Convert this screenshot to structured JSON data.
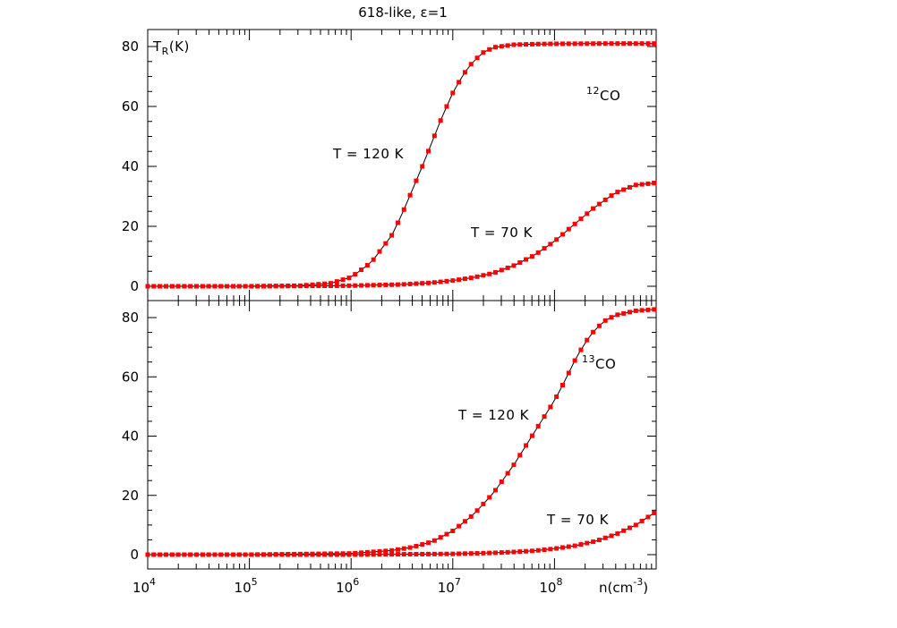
{
  "chart_data": {
    "type": "line",
    "title": "618-like, ε=1",
    "xscale": "log",
    "xlim": [
      10000,
      1000000000
    ],
    "xticks": [
      "10^4",
      "10^5",
      "10^6",
      "10^7",
      "10^8"
    ],
    "xlabel": "n(cm^-3)",
    "ylabel": "T_R(K)",
    "panels": [
      {
        "species": "12CO",
        "label_main": "CO",
        "label_sup": "12",
        "ylim": [
          -3,
          83
        ],
        "yticks": [
          0,
          20,
          40,
          60,
          80
        ],
        "series": [
          {
            "name": "T = 120 K",
            "logx": [
              4.0,
              5.0,
              5.5,
              5.8,
              6.0,
              6.2,
              6.4,
              6.5,
              6.6,
              6.7,
              6.8,
              6.9,
              7.0,
              7.1,
              7.2,
              7.3,
              7.4,
              7.6,
              7.8,
              8.0,
              8.5,
              9.0
            ],
            "y": [
              0.0,
              0.0,
              0.2,
              1.0,
              3.0,
              8.0,
              17.0,
              24.0,
              32.0,
              40.0,
              48.5,
              57.0,
              64.5,
              70.5,
              75.0,
              78.0,
              79.7,
              80.6,
              80.8,
              80.9,
              81.0,
              81.0
            ]
          },
          {
            "name": "T = 70 K",
            "logx": [
              4.0,
              5.0,
              6.0,
              6.5,
              6.8,
              7.0,
              7.2,
              7.4,
              7.6,
              7.8,
              8.0,
              8.2,
              8.4,
              8.6,
              8.8,
              9.0
            ],
            "y": [
              0.0,
              0.0,
              0.2,
              0.6,
              1.2,
              1.9,
              2.9,
              4.4,
              6.9,
              10.3,
              15.0,
              20.8,
              26.5,
              31.2,
              33.8,
              34.5
            ]
          }
        ],
        "annotations": [
          "T = 120 K",
          "T = 70 K"
        ]
      },
      {
        "species": "13CO",
        "label_main": "CO",
        "label_sup": "13",
        "ylim": [
          -3,
          85
        ],
        "yticks": [
          0,
          20,
          40,
          60,
          80
        ],
        "series": [
          {
            "name": "T = 120 K",
            "logx": [
              4.0,
              5.0,
              6.0,
              6.4,
              6.6,
              6.8,
              7.0,
              7.2,
              7.4,
              7.6,
              7.8,
              8.0,
              8.1,
              8.2,
              8.3,
              8.4,
              8.5,
              8.6,
              8.8,
              9.0
            ],
            "y": [
              0.0,
              0.0,
              0.4,
              1.4,
              2.5,
              4.4,
              8.0,
              13.4,
              20.8,
              30.3,
              41.2,
              52.0,
              58.5,
              65.5,
              71.5,
              76.0,
              79.0,
              80.8,
              82.3,
              82.8
            ]
          },
          {
            "name": "T = 70 K",
            "logx": [
              4.0,
              5.0,
              6.0,
              7.0,
              7.4,
              7.6,
              7.8,
              8.0,
              8.2,
              8.4,
              8.6,
              8.8,
              9.0
            ],
            "y": [
              0.0,
              0.0,
              0.0,
              0.25,
              0.6,
              0.9,
              1.3,
              2.0,
              3.0,
              4.5,
              6.8,
              10.0,
              14.5
            ]
          }
        ],
        "annotations": [
          "T = 120 K",
          "T = 70 K"
        ]
      }
    ],
    "colors": {
      "markers": "#ff0000",
      "line": "#000000",
      "axes": "#000000"
    }
  }
}
